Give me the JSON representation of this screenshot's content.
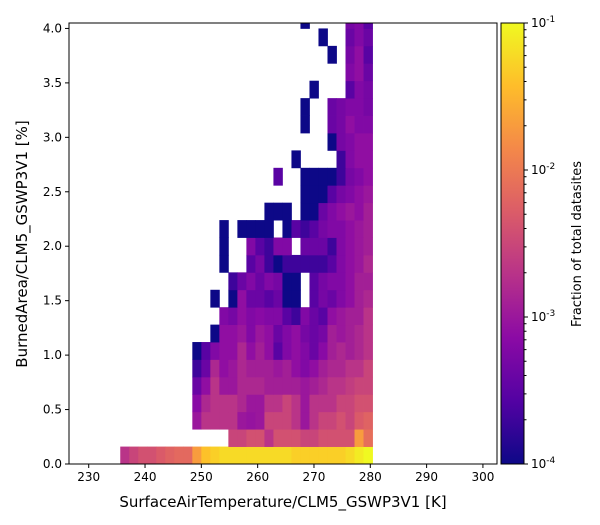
{
  "chart_data": {
    "type": "heatmap",
    "xlabel": "SurfaceAirTemperature/CLM5_GSWP3V1 [K]",
    "ylabel": "BurnedArea/CLM5_GSWP3V1 [%]",
    "colorbar_label": "Fraction of total datasites",
    "color_scale": "log",
    "color_range": [
      0.0001,
      0.1
    ],
    "colormap": "plasma",
    "colormap_stops": [
      "#0d0887",
      "#5302a3",
      "#8b0aa5",
      "#b83289",
      "#db5c68",
      "#f48849",
      "#febd2a",
      "#f0f921"
    ],
    "xlim": [
      226.5,
      302.5
    ],
    "ylim": [
      0,
      4.05
    ],
    "x_ticks": [
      "230",
      "240",
      "250",
      "260",
      "270",
      "280",
      "290",
      "300"
    ],
    "y_ticks": [
      "0.0",
      "0.5",
      "1.0",
      "1.5",
      "2.0",
      "2.5",
      "3.0",
      "3.5",
      "4.0"
    ],
    "colorbar_ticks": [
      "10^-4",
      "10^-3",
      "10^-2",
      "10^-1"
    ],
    "x_bin_start": 235.6,
    "x_bin_width": 1.6,
    "y_bin_width": 0.16,
    "cells": [
      [
        0,
        0,
        0.002
      ],
      [
        1,
        0,
        0.003
      ],
      [
        2,
        0,
        0.004
      ],
      [
        3,
        0,
        0.004
      ],
      [
        4,
        0,
        0.005
      ],
      [
        5,
        0,
        0.006
      ],
      [
        6,
        0,
        0.007
      ],
      [
        7,
        0,
        0.007
      ],
      [
        8,
        0,
        0.02
      ],
      [
        9,
        0,
        0.04
      ],
      [
        10,
        0,
        0.05
      ],
      [
        11,
        0,
        0.06
      ],
      [
        12,
        0,
        0.06
      ],
      [
        13,
        0,
        0.06
      ],
      [
        14,
        0,
        0.06
      ],
      [
        15,
        0,
        0.06
      ],
      [
        16,
        0,
        0.06
      ],
      [
        17,
        0,
        0.06
      ],
      [
        18,
        0,
        0.06
      ],
      [
        19,
        0,
        0.05
      ],
      [
        20,
        0,
        0.05
      ],
      [
        21,
        0,
        0.05
      ],
      [
        22,
        0,
        0.05
      ],
      [
        23,
        0,
        0.05
      ],
      [
        24,
        0,
        0.05
      ],
      [
        25,
        0,
        0.06
      ],
      [
        26,
        0,
        0.08
      ],
      [
        27,
        0,
        0.1
      ],
      [
        12,
        1,
        0.003
      ],
      [
        13,
        1,
        0.003
      ],
      [
        14,
        1,
        0.004
      ],
      [
        15,
        1,
        0.004
      ],
      [
        16,
        1,
        0.002
      ],
      [
        17,
        1,
        0.004
      ],
      [
        18,
        1,
        0.004
      ],
      [
        19,
        1,
        0.004
      ],
      [
        20,
        1,
        0.003
      ],
      [
        21,
        1,
        0.003
      ],
      [
        22,
        1,
        0.004
      ],
      [
        23,
        1,
        0.004
      ],
      [
        24,
        1,
        0.004
      ],
      [
        25,
        1,
        0.004
      ],
      [
        26,
        1,
        0.02
      ],
      [
        27,
        1,
        0.008
      ],
      [
        8,
        2,
        0.001
      ],
      [
        9,
        2,
        0.002
      ],
      [
        10,
        2,
        0.002
      ],
      [
        11,
        2,
        0.002
      ],
      [
        12,
        2,
        0.002
      ],
      [
        13,
        2,
        0.001
      ],
      [
        14,
        2,
        0.0009
      ],
      [
        15,
        2,
        0.001
      ],
      [
        16,
        2,
        0.003
      ],
      [
        17,
        2,
        0.003
      ],
      [
        18,
        2,
        0.003
      ],
      [
        19,
        2,
        0.002
      ],
      [
        20,
        2,
        0.001
      ],
      [
        21,
        2,
        0.002
      ],
      [
        22,
        2,
        0.003
      ],
      [
        23,
        2,
        0.003
      ],
      [
        24,
        2,
        0.004
      ],
      [
        25,
        2,
        0.003
      ],
      [
        26,
        2,
        0.005
      ],
      [
        27,
        2,
        0.006
      ],
      [
        8,
        3,
        0.0007
      ],
      [
        9,
        3,
        0.0015
      ],
      [
        10,
        3,
        0.002
      ],
      [
        11,
        3,
        0.002
      ],
      [
        12,
        3,
        0.002
      ],
      [
        13,
        3,
        0.0015
      ],
      [
        14,
        3,
        0.001
      ],
      [
        15,
        3,
        0.001
      ],
      [
        16,
        3,
        0.002
      ],
      [
        17,
        3,
        0.002
      ],
      [
        18,
        3,
        0.003
      ],
      [
        19,
        3,
        0.002
      ],
      [
        20,
        3,
        0.001
      ],
      [
        21,
        3,
        0.002
      ],
      [
        22,
        3,
        0.002
      ],
      [
        23,
        3,
        0.002
      ],
      [
        24,
        3,
        0.003
      ],
      [
        25,
        3,
        0.003
      ],
      [
        26,
        3,
        0.004
      ],
      [
        27,
        3,
        0.004
      ],
      [
        8,
        4,
        0.0004
      ],
      [
        9,
        4,
        0.0008
      ],
      [
        10,
        4,
        0.002
      ],
      [
        11,
        4,
        0.001
      ],
      [
        12,
        4,
        0.001
      ],
      [
        13,
        4,
        0.0015
      ],
      [
        14,
        4,
        0.0015
      ],
      [
        15,
        4,
        0.0015
      ],
      [
        16,
        4,
        0.0012
      ],
      [
        17,
        4,
        0.0012
      ],
      [
        18,
        4,
        0.0012
      ],
      [
        19,
        4,
        0.0012
      ],
      [
        20,
        4,
        0.001
      ],
      [
        21,
        4,
        0.0012
      ],
      [
        22,
        4,
        0.0015
      ],
      [
        23,
        4,
        0.002
      ],
      [
        24,
        4,
        0.002
      ],
      [
        25,
        4,
        0.0025
      ],
      [
        26,
        4,
        0.003
      ],
      [
        27,
        4,
        0.003
      ],
      [
        8,
        5,
        0.0002
      ],
      [
        9,
        5,
        0.0004
      ],
      [
        10,
        5,
        0.0015
      ],
      [
        11,
        5,
        0.0008
      ],
      [
        12,
        5,
        0.001
      ],
      [
        13,
        5,
        0.0015
      ],
      [
        14,
        5,
        0.0012
      ],
      [
        15,
        5,
        0.0012
      ],
      [
        16,
        5,
        0.0012
      ],
      [
        17,
        5,
        0.001
      ],
      [
        18,
        5,
        0.0012
      ],
      [
        19,
        5,
        0.0008
      ],
      [
        20,
        5,
        0.0006
      ],
      [
        21,
        5,
        0.0008
      ],
      [
        22,
        5,
        0.0012
      ],
      [
        23,
        5,
        0.0015
      ],
      [
        24,
        5,
        0.0015
      ],
      [
        25,
        5,
        0.002
      ],
      [
        26,
        5,
        0.002
      ],
      [
        27,
        5,
        0.003
      ],
      [
        8,
        6,
        0.0001
      ],
      [
        9,
        6,
        0.0003
      ],
      [
        10,
        6,
        0.0006
      ],
      [
        11,
        6,
        0.0008
      ],
      [
        12,
        6,
        0.0008
      ],
      [
        13,
        6,
        0.0015
      ],
      [
        14,
        6,
        0.0008
      ],
      [
        15,
        6,
        0.0012
      ],
      [
        16,
        6,
        0.0008
      ],
      [
        17,
        6,
        0.0003
      ],
      [
        18,
        6,
        0.0006
      ],
      [
        19,
        6,
        0.0008
      ],
      [
        20,
        6,
        0.0006
      ],
      [
        21,
        6,
        0.0004
      ],
      [
        22,
        6,
        0.0007
      ],
      [
        23,
        6,
        0.0012
      ],
      [
        24,
        6,
        0.0015
      ],
      [
        25,
        6,
        0.0012
      ],
      [
        26,
        6,
        0.0015
      ],
      [
        27,
        6,
        0.002
      ],
      [
        10,
        7,
        0.0001
      ],
      [
        11,
        7,
        0.0008
      ],
      [
        12,
        7,
        0.0008
      ],
      [
        13,
        7,
        0.001
      ],
      [
        14,
        7,
        0.0006
      ],
      [
        15,
        7,
        0.001
      ],
      [
        16,
        7,
        0.0008
      ],
      [
        17,
        7,
        0.0004
      ],
      [
        18,
        7,
        0.0006
      ],
      [
        19,
        7,
        0.0008
      ],
      [
        20,
        7,
        0.0005
      ],
      [
        21,
        7,
        0.0004
      ],
      [
        22,
        7,
        0.0005
      ],
      [
        23,
        7,
        0.0012
      ],
      [
        24,
        7,
        0.001
      ],
      [
        25,
        7,
        0.0012
      ],
      [
        26,
        7,
        0.0015
      ],
      [
        27,
        7,
        0.002
      ],
      [
        11,
        8,
        0.0006
      ],
      [
        12,
        8,
        0.0005
      ],
      [
        13,
        8,
        0.0008
      ],
      [
        14,
        8,
        0.0006
      ],
      [
        15,
        8,
        0.0007
      ],
      [
        16,
        8,
        0.0006
      ],
      [
        17,
        8,
        0.0006
      ],
      [
        18,
        8,
        0.0003
      ],
      [
        19,
        8,
        0.0002
      ],
      [
        20,
        8,
        0.0006
      ],
      [
        21,
        8,
        0.0004
      ],
      [
        22,
        8,
        0.0003
      ],
      [
        23,
        8,
        0.0008
      ],
      [
        24,
        8,
        0.001
      ],
      [
        25,
        8,
        0.0012
      ],
      [
        26,
        8,
        0.0012
      ],
      [
        27,
        8,
        0.002
      ],
      [
        10,
        9,
        0.0001
      ],
      [
        12,
        9,
        0.0001
      ],
      [
        13,
        9,
        0.0008
      ],
      [
        14,
        9,
        0.0004
      ],
      [
        15,
        9,
        0.0004
      ],
      [
        16,
        9,
        0.0003
      ],
      [
        17,
        9,
        0.0004
      ],
      [
        18,
        9,
        0.0001
      ],
      [
        19,
        9,
        0.0001
      ],
      [
        21,
        9,
        0.0003
      ],
      [
        22,
        9,
        0.0005
      ],
      [
        23,
        9,
        0.0004
      ],
      [
        24,
        9,
        0.0006
      ],
      [
        25,
        9,
        0.0008
      ],
      [
        26,
        9,
        0.0012
      ],
      [
        27,
        9,
        0.0015
      ],
      [
        12,
        10,
        0.0002
      ],
      [
        13,
        10,
        0.0004
      ],
      [
        14,
        10,
        0.0006
      ],
      [
        15,
        10,
        0.0004
      ],
      [
        16,
        10,
        0.0006
      ],
      [
        17,
        10,
        0.0005
      ],
      [
        18,
        10,
        0.0001
      ],
      [
        19,
        10,
        0.0001
      ],
      [
        21,
        10,
        0.0003
      ],
      [
        22,
        10,
        0.0005
      ],
      [
        23,
        10,
        0.0006
      ],
      [
        24,
        10,
        0.0006
      ],
      [
        25,
        10,
        0.0008
      ],
      [
        26,
        10,
        0.0012
      ],
      [
        27,
        10,
        0.0012
      ],
      [
        11,
        11,
        0.0001
      ],
      [
        14,
        11,
        0.0003
      ],
      [
        15,
        11,
        0.0005
      ],
      [
        16,
        11,
        0.0002
      ],
      [
        17,
        11,
        0.0001
      ],
      [
        18,
        11,
        0.0002
      ],
      [
        19,
        11,
        0.0002
      ],
      [
        20,
        11,
        0.0002
      ],
      [
        21,
        11,
        0.0002
      ],
      [
        22,
        11,
        0.0002
      ],
      [
        23,
        11,
        0.0003
      ],
      [
        24,
        11,
        0.0006
      ],
      [
        25,
        11,
        0.0008
      ],
      [
        26,
        11,
        0.001
      ],
      [
        27,
        11,
        0.0015
      ],
      [
        11,
        12,
        0.0001
      ],
      [
        14,
        12,
        0.0006
      ],
      [
        15,
        12,
        0.0003
      ],
      [
        16,
        12,
        0.0002
      ],
      [
        17,
        12,
        0.0006
      ],
      [
        18,
        12,
        0.0006
      ],
      [
        20,
        12,
        0.0004
      ],
      [
        21,
        12,
        0.0004
      ],
      [
        22,
        12,
        0.0004
      ],
      [
        23,
        12,
        0.0002
      ],
      [
        24,
        12,
        0.0006
      ],
      [
        25,
        12,
        0.0008
      ],
      [
        26,
        12,
        0.001
      ],
      [
        27,
        12,
        0.0012
      ],
      [
        11,
        13,
        0.0001
      ],
      [
        13,
        13,
        0.0001
      ],
      [
        14,
        13,
        0.0001
      ],
      [
        15,
        13,
        0.0001
      ],
      [
        16,
        13,
        0.0001
      ],
      [
        18,
        13,
        0.0001
      ],
      [
        19,
        13,
        0.0003
      ],
      [
        20,
        13,
        0.0002
      ],
      [
        21,
        13,
        0.0003
      ],
      [
        22,
        13,
        0.0005
      ],
      [
        23,
        13,
        0.0006
      ],
      [
        24,
        13,
        0.0006
      ],
      [
        25,
        13,
        0.0008
      ],
      [
        26,
        13,
        0.001
      ],
      [
        27,
        13,
        0.0012
      ],
      [
        16,
        14,
        0.0001
      ],
      [
        17,
        14,
        0.0001
      ],
      [
        18,
        14,
        0.0001
      ],
      [
        20,
        14,
        0.0001
      ],
      [
        21,
        14,
        0.0001
      ],
      [
        22,
        14,
        0.0004
      ],
      [
        23,
        14,
        0.0006
      ],
      [
        24,
        14,
        0.0008
      ],
      [
        25,
        14,
        0.001
      ],
      [
        26,
        14,
        0.0008
      ],
      [
        27,
        14,
        0.0012
      ],
      [
        20,
        15,
        0.0001
      ],
      [
        21,
        15,
        0.0001
      ],
      [
        22,
        15,
        0.0001
      ],
      [
        23,
        15,
        0.0003
      ],
      [
        24,
        15,
        0.0005
      ],
      [
        25,
        15,
        0.0006
      ],
      [
        26,
        15,
        0.0008
      ],
      [
        27,
        15,
        0.001
      ],
      [
        17,
        16,
        0.0003
      ],
      [
        20,
        16,
        0.0001
      ],
      [
        21,
        16,
        0.0001
      ],
      [
        22,
        16,
        0.0001
      ],
      [
        23,
        16,
        0.0001
      ],
      [
        24,
        16,
        0.0002
      ],
      [
        25,
        16,
        0.0005
      ],
      [
        26,
        16,
        0.0006
      ],
      [
        27,
        16,
        0.0008
      ],
      [
        19,
        17,
        0.0001
      ],
      [
        24,
        17,
        0.0002
      ],
      [
        25,
        17,
        0.0006
      ],
      [
        26,
        17,
        0.0008
      ],
      [
        27,
        17,
        0.0008
      ],
      [
        23,
        18,
        0.0001
      ],
      [
        24,
        18,
        0.0005
      ],
      [
        25,
        18,
        0.0006
      ],
      [
        26,
        18,
        0.0008
      ],
      [
        27,
        18,
        0.0008
      ],
      [
        20,
        19,
        0.0001
      ],
      [
        23,
        19,
        0.0004
      ],
      [
        24,
        19,
        0.0005
      ],
      [
        25,
        19,
        0.0008
      ],
      [
        26,
        19,
        0.0006
      ],
      [
        27,
        19,
        0.0006
      ],
      [
        20,
        20,
        0.0001
      ],
      [
        23,
        20,
        0.0004
      ],
      [
        24,
        20,
        0.0005
      ],
      [
        25,
        20,
        0.0006
      ],
      [
        26,
        20,
        0.0006
      ],
      [
        27,
        20,
        0.0005
      ],
      [
        21,
        21,
        0.0001
      ],
      [
        25,
        21,
        0.0003
      ],
      [
        26,
        21,
        0.0006
      ],
      [
        27,
        21,
        0.0005
      ],
      [
        25,
        22,
        0.0006
      ],
      [
        26,
        22,
        0.0008
      ],
      [
        27,
        22,
        0.0004
      ],
      [
        23,
        23,
        0.0001
      ],
      [
        25,
        23,
        0.0005
      ],
      [
        26,
        23,
        0.0008
      ],
      [
        27,
        23,
        0.0003
      ],
      [
        22,
        24,
        0.0001
      ],
      [
        25,
        24,
        0.0004
      ],
      [
        26,
        24,
        0.0006
      ],
      [
        27,
        24,
        0.0004
      ],
      [
        20,
        25,
        0.0001
      ],
      [
        25,
        25,
        0.0005
      ],
      [
        26,
        25,
        0.0006
      ],
      [
        27,
        25,
        0.0003
      ]
    ]
  }
}
